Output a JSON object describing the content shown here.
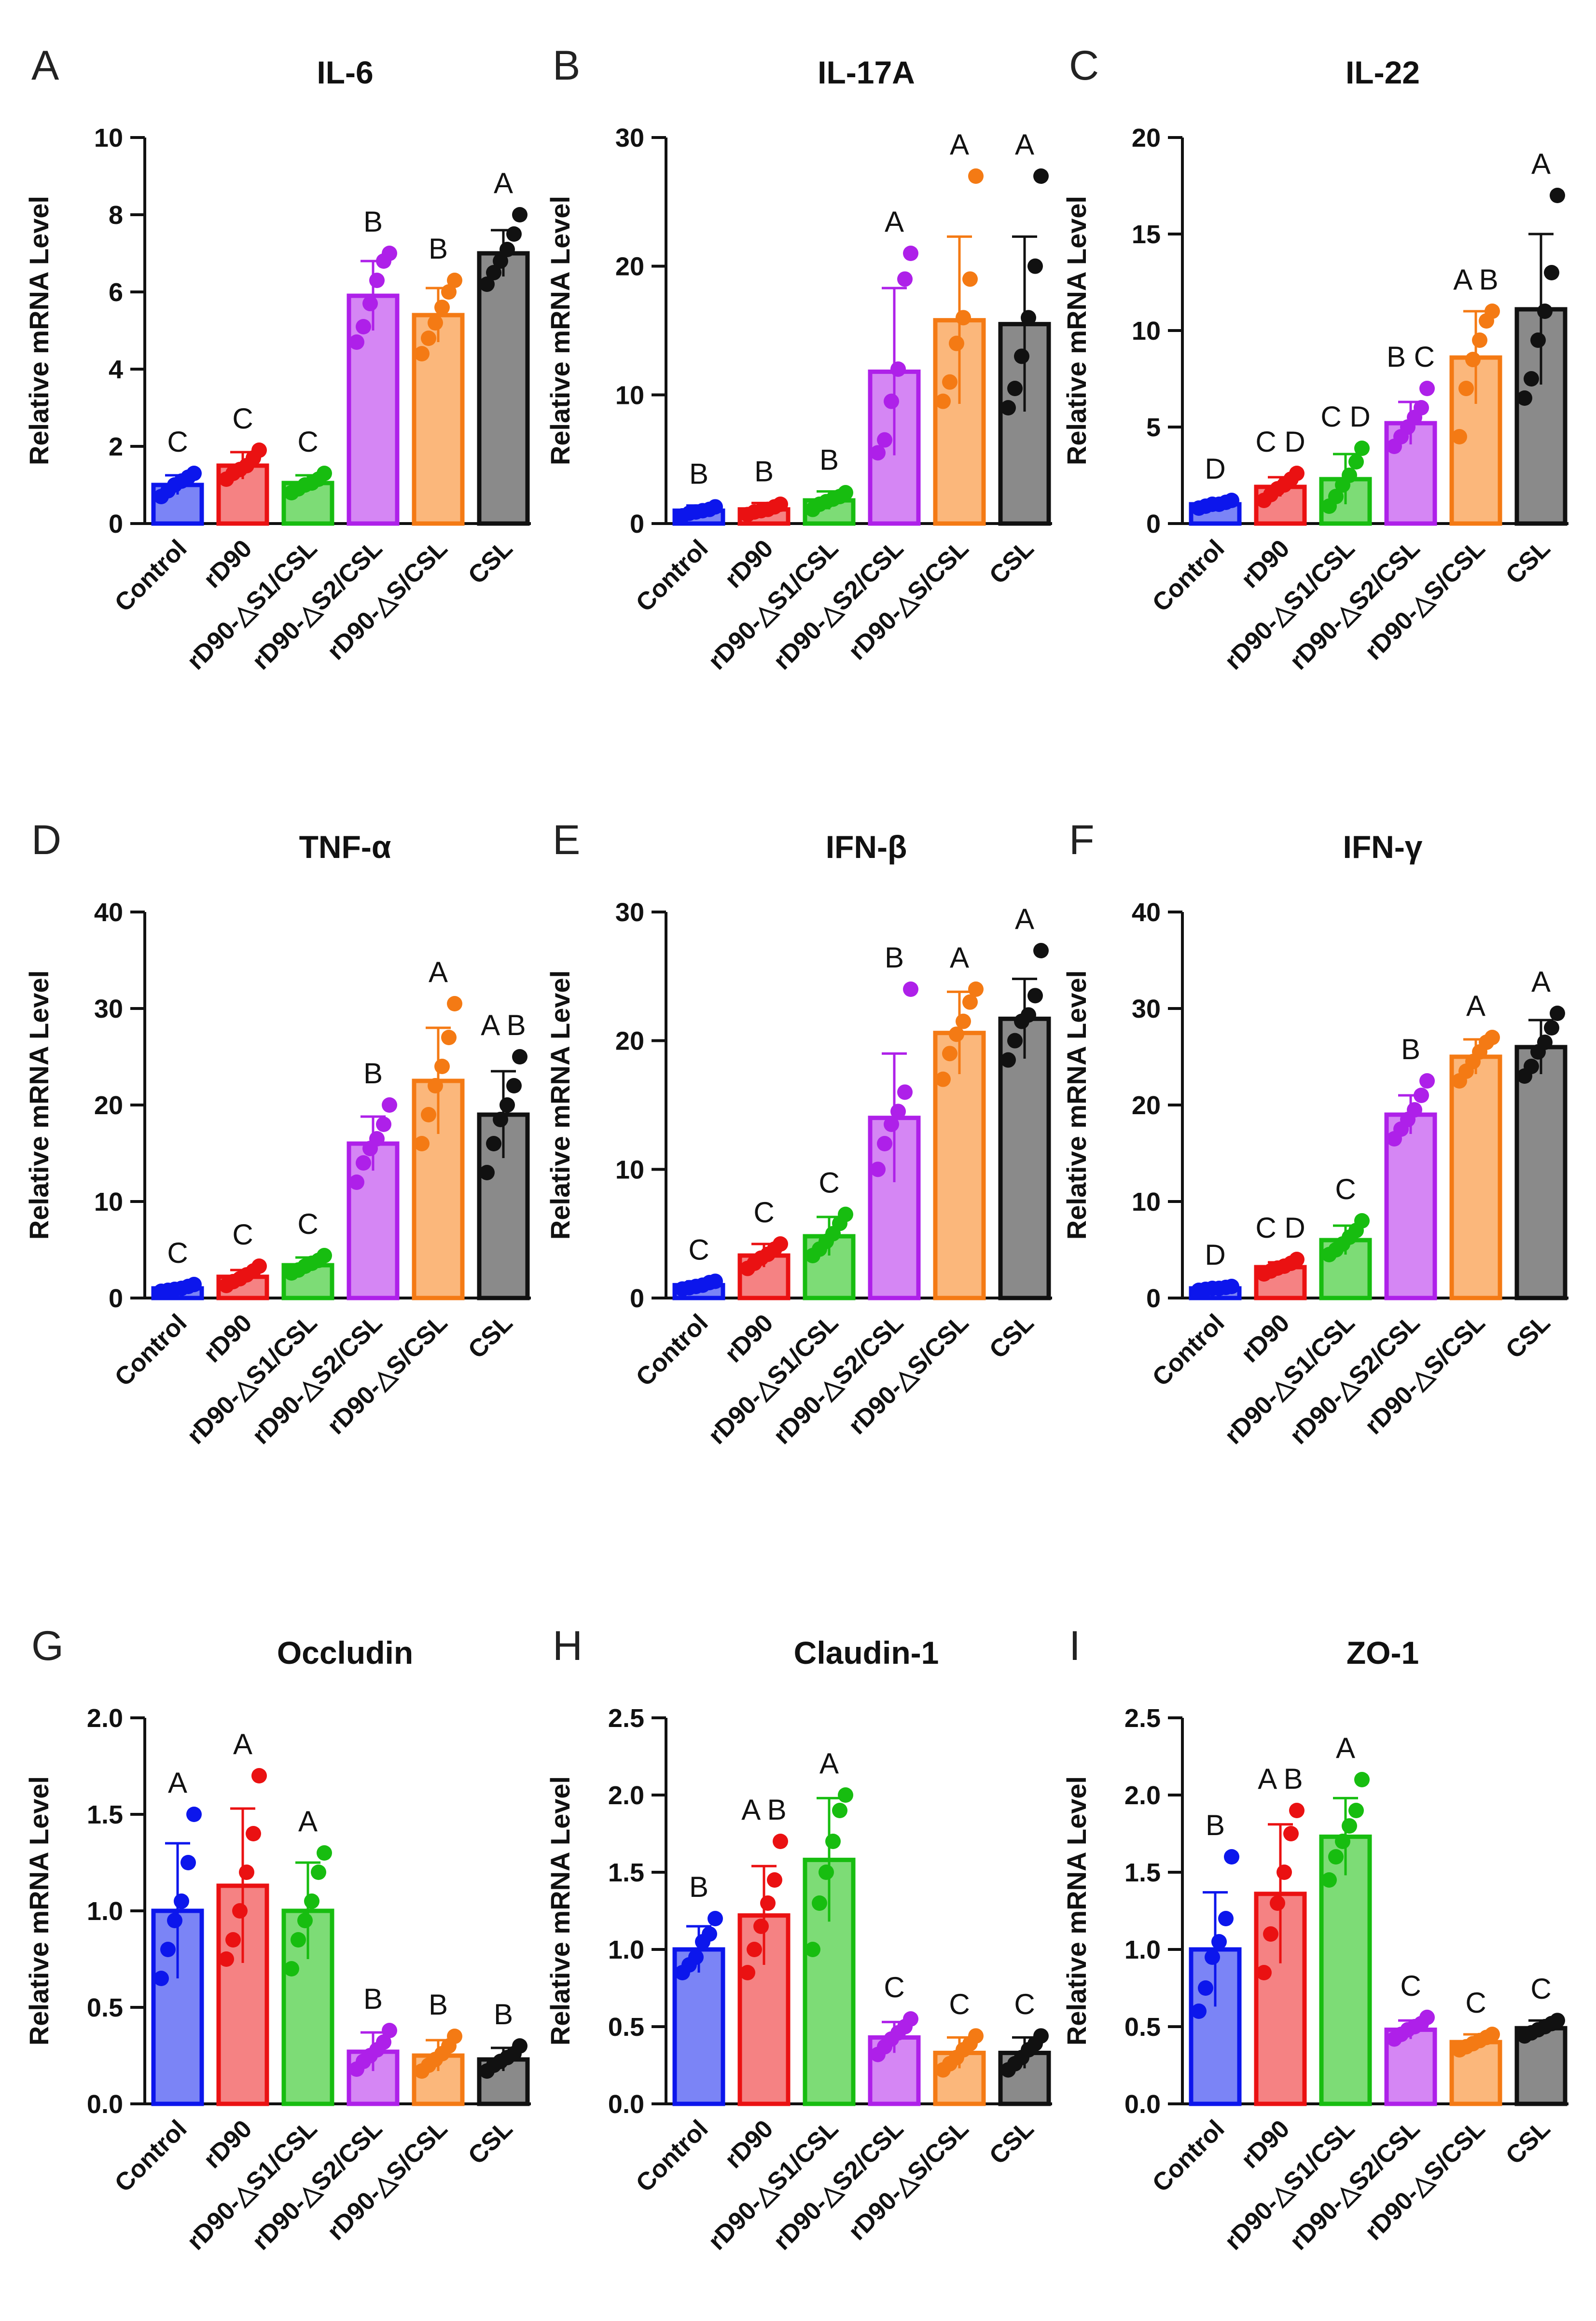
{
  "categories": [
    "Control",
    "rD90",
    "rD90-△S1/CSL",
    "rD90-△S2/CSL",
    "rD90-△S/CSL",
    "CSL"
  ],
  "colors": {
    "fill": [
      "#7b84f6",
      "#f58283",
      "#7ddc76",
      "#d586f4",
      "#fbb77b",
      "#8a8a8a"
    ],
    "stroke": [
      "#0c16ec",
      "#ea1112",
      "#17bd10",
      "#ae20e9",
      "#f47a14",
      "#111111"
    ]
  },
  "ylabel": "Relative mRNA Level",
  "chart_data": [
    {
      "type": "bar",
      "panel": "A",
      "title": "IL-6",
      "categories": [
        "Control",
        "rD90",
        "rD90-△S1/CSL",
        "rD90-△S2/CSL",
        "rD90-△S/CSL",
        "CSL"
      ],
      "ylim": [
        0,
        10
      ],
      "yticks": [
        0,
        2,
        4,
        6,
        8,
        10
      ],
      "tick_decimals": 0,
      "ylabel": "Relative mRNA Level",
      "values": [
        1.0,
        1.5,
        1.05,
        5.9,
        5.4,
        7.0
      ],
      "errors": [
        0.25,
        0.35,
        0.2,
        0.9,
        0.7,
        0.6
      ],
      "points": [
        [
          0.7,
          0.85,
          1.0,
          1.1,
          1.2,
          1.3
        ],
        [
          1.15,
          1.3,
          1.4,
          1.5,
          1.7,
          1.9
        ],
        [
          0.8,
          0.9,
          1.0,
          1.05,
          1.15,
          1.3
        ],
        [
          4.7,
          5.1,
          5.7,
          6.3,
          6.8,
          7.0
        ],
        [
          4.4,
          4.8,
          5.2,
          5.6,
          6.0,
          6.3
        ],
        [
          6.2,
          6.5,
          6.8,
          7.1,
          7.5,
          8.0
        ]
      ],
      "letters": [
        "C",
        "C",
        "C",
        "B",
        "B",
        "A"
      ]
    },
    {
      "type": "bar",
      "panel": "B",
      "title": "IL-17A",
      "categories": [
        "Control",
        "rD90",
        "rD90-△S1/CSL",
        "rD90-△S2/CSL",
        "rD90-△S/CSL",
        "CSL"
      ],
      "ylim": [
        0,
        30
      ],
      "yticks": [
        0,
        10,
        20,
        30
      ],
      "tick_decimals": 0,
      "ylabel": "Relative mRNA Level",
      "values": [
        1.0,
        1.1,
        1.8,
        11.8,
        15.8,
        15.5
      ],
      "errors": [
        0.4,
        0.5,
        0.7,
        6.5,
        6.5,
        6.8
      ],
      "points": [
        [
          0.6,
          0.8,
          0.9,
          1.0,
          1.1,
          1.3
        ],
        [
          0.7,
          0.9,
          1.0,
          1.1,
          1.3,
          1.5
        ],
        [
          1.1,
          1.5,
          1.7,
          1.9,
          2.1,
          2.4
        ],
        [
          5.5,
          6.5,
          9.5,
          12.0,
          19.0,
          21.0
        ],
        [
          9.5,
          11.0,
          14.0,
          16.0,
          19.0,
          27.0
        ],
        [
          9.0,
          10.5,
          13.0,
          16.0,
          20.0,
          27.0
        ]
      ],
      "letters": [
        "B",
        "B",
        "B",
        "A",
        "A",
        "A"
      ]
    },
    {
      "type": "bar",
      "panel": "C",
      "title": "IL-22",
      "categories": [
        "Control",
        "rD90",
        "rD90-△S1/CSL",
        "rD90-△S2/CSL",
        "rD90-△S/CSL",
        "CSL"
      ],
      "ylim": [
        0,
        20
      ],
      "yticks": [
        0,
        5,
        10,
        15,
        20
      ],
      "tick_decimals": 0,
      "ylabel": "Relative mRNA Level",
      "values": [
        1.0,
        1.9,
        2.3,
        5.2,
        8.6,
        11.1
      ],
      "errors": [
        0.2,
        0.5,
        1.3,
        1.1,
        2.4,
        3.9
      ],
      "points": [
        [
          0.8,
          0.9,
          1.0,
          1.0,
          1.1,
          1.2
        ],
        [
          1.2,
          1.5,
          1.8,
          2.0,
          2.3,
          2.6
        ],
        [
          0.9,
          1.4,
          2.0,
          2.5,
          3.2,
          3.9
        ],
        [
          4.0,
          4.5,
          5.0,
          5.5,
          6.0,
          7.0
        ],
        [
          4.5,
          7.0,
          8.5,
          9.5,
          10.5,
          11.0
        ],
        [
          6.5,
          7.5,
          9.5,
          11.0,
          13.0,
          17.0
        ]
      ],
      "letters": [
        "D",
        "C D",
        "C D",
        "B C",
        "A B",
        "A"
      ]
    },
    {
      "type": "bar",
      "panel": "D",
      "title": "TNF-α",
      "categories": [
        "Control",
        "rD90",
        "rD90-△S1/CSL",
        "rD90-△S2/CSL",
        "rD90-△S/CSL",
        "CSL"
      ],
      "ylim": [
        0,
        40
      ],
      "yticks": [
        0,
        10,
        20,
        30,
        40
      ],
      "tick_decimals": 0,
      "ylabel": "Relative mRNA Level",
      "values": [
        1.0,
        2.2,
        3.4,
        16.0,
        22.5,
        19.0
      ],
      "errors": [
        0.3,
        0.7,
        0.8,
        2.8,
        5.5,
        4.5
      ],
      "points": [
        [
          0.7,
          0.8,
          0.9,
          1.0,
          1.2,
          1.4
        ],
        [
          1.3,
          1.7,
          2.0,
          2.4,
          2.8,
          3.3
        ],
        [
          2.6,
          2.9,
          3.3,
          3.6,
          3.9,
          4.4
        ],
        [
          12.0,
          14.0,
          15.5,
          16.5,
          18.0,
          20.0
        ],
        [
          16.0,
          19.0,
          22.0,
          24.0,
          27.0,
          30.5
        ],
        [
          13.0,
          16.0,
          18.5,
          20.0,
          22.0,
          25.0
        ]
      ],
      "letters": [
        "C",
        "C",
        "C",
        "B",
        "A",
        "A B"
      ]
    },
    {
      "type": "bar",
      "panel": "E",
      "title": "IFN-β",
      "categories": [
        "Control",
        "rD90",
        "rD90-△S1/CSL",
        "rD90-△S2/CSL",
        "rD90-△S/CSL",
        "CSL"
      ],
      "ylim": [
        0,
        30
      ],
      "yticks": [
        0,
        10,
        20,
        30
      ],
      "tick_decimals": 0,
      "ylabel": "Relative mRNA Level",
      "values": [
        1.0,
        3.3,
        4.8,
        14.0,
        20.6,
        21.7
      ],
      "errors": [
        0.3,
        0.9,
        1.5,
        5.0,
        3.2,
        3.1
      ],
      "points": [
        [
          0.7,
          0.8,
          0.9,
          1.0,
          1.2,
          1.3
        ],
        [
          2.3,
          2.7,
          3.1,
          3.4,
          3.8,
          4.2
        ],
        [
          3.3,
          3.8,
          4.4,
          5.0,
          5.8,
          6.5
        ],
        [
          10.0,
          12.0,
          13.5,
          14.5,
          16.0,
          24.0
        ],
        [
          17.0,
          19.0,
          20.5,
          21.5,
          23.0,
          24.0
        ],
        [
          18.5,
          20.0,
          21.5,
          22.0,
          23.5,
          27.0
        ]
      ],
      "letters": [
        "C",
        "C",
        "C",
        "B",
        "A",
        "A"
      ]
    },
    {
      "type": "bar",
      "panel": "F",
      "title": "IFN-γ",
      "categories": [
        "Control",
        "rD90",
        "rD90-△S1/CSL",
        "rD90-△S2/CSL",
        "rD90-△S/CSL",
        "CSL"
      ],
      "ylim": [
        0,
        40
      ],
      "yticks": [
        0,
        10,
        20,
        30,
        40
      ],
      "tick_decimals": 0,
      "ylabel": "Relative mRNA Level",
      "values": [
        1.0,
        3.2,
        6.0,
        19.0,
        25.0,
        26.0
      ],
      "errors": [
        0.2,
        0.5,
        1.5,
        2.0,
        1.8,
        2.8
      ],
      "points": [
        [
          0.8,
          0.9,
          1.0,
          1.0,
          1.1,
          1.2
        ],
        [
          2.5,
          2.8,
          3.1,
          3.3,
          3.6,
          4.0
        ],
        [
          4.5,
          5.0,
          5.6,
          6.3,
          7.0,
          8.0
        ],
        [
          16.5,
          17.5,
          18.5,
          19.5,
          21.0,
          22.5
        ],
        [
          22.5,
          23.5,
          24.5,
          25.5,
          26.5,
          27.0
        ],
        [
          23.0,
          24.0,
          25.5,
          26.5,
          28.0,
          29.5
        ]
      ],
      "letters": [
        "D",
        "C D",
        "C",
        "B",
        "A",
        "A"
      ]
    },
    {
      "type": "bar",
      "panel": "G",
      "title": "Occludin",
      "categories": [
        "Control",
        "rD90",
        "rD90-△S1/CSL",
        "rD90-△S2/CSL",
        "rD90-△S/CSL",
        "CSL"
      ],
      "ylim": [
        0,
        2.0
      ],
      "yticks": [
        0,
        0.5,
        1.0,
        1.5,
        2.0
      ],
      "tick_decimals": 1,
      "ylabel": "Relative mRNA Level",
      "values": [
        1.0,
        1.13,
        1.0,
        0.27,
        0.25,
        0.23
      ],
      "errors": [
        0.35,
        0.4,
        0.25,
        0.1,
        0.08,
        0.06
      ],
      "points": [
        [
          0.65,
          0.8,
          0.95,
          1.05,
          1.25,
          1.5
        ],
        [
          0.75,
          0.85,
          1.0,
          1.2,
          1.4,
          1.7
        ],
        [
          0.7,
          0.85,
          0.95,
          1.05,
          1.2,
          1.3
        ],
        [
          0.18,
          0.22,
          0.25,
          0.28,
          0.32,
          0.38
        ],
        [
          0.17,
          0.2,
          0.23,
          0.26,
          0.3,
          0.35
        ],
        [
          0.17,
          0.2,
          0.22,
          0.24,
          0.26,
          0.3
        ]
      ],
      "letters": [
        "A",
        "A",
        "A",
        "B",
        "B",
        "B"
      ]
    },
    {
      "type": "bar",
      "panel": "H",
      "title": "Claudin-1",
      "categories": [
        "Control",
        "rD90",
        "rD90-△S1/CSL",
        "rD90-△S2/CSL",
        "rD90-△S/CSL",
        "CSL"
      ],
      "ylim": [
        0,
        2.5
      ],
      "yticks": [
        0,
        0.5,
        1.0,
        1.5,
        2.0,
        2.5
      ],
      "tick_decimals": 1,
      "ylabel": "Relative mRNA Level",
      "values": [
        1.0,
        1.22,
        1.58,
        0.43,
        0.33,
        0.33
      ],
      "errors": [
        0.15,
        0.32,
        0.4,
        0.1,
        0.1,
        0.1
      ],
      "points": [
        [
          0.85,
          0.9,
          0.95,
          1.05,
          1.1,
          1.2
        ],
        [
          0.85,
          1.0,
          1.15,
          1.3,
          1.45,
          1.7
        ],
        [
          1.0,
          1.3,
          1.5,
          1.7,
          1.9,
          2.0
        ],
        [
          0.32,
          0.37,
          0.42,
          0.46,
          0.5,
          0.55
        ],
        [
          0.22,
          0.26,
          0.3,
          0.35,
          0.39,
          0.44
        ],
        [
          0.22,
          0.26,
          0.3,
          0.35,
          0.39,
          0.44
        ]
      ],
      "letters": [
        "B",
        "A B",
        "A",
        "C",
        "C",
        "C"
      ]
    },
    {
      "type": "bar",
      "panel": "I",
      "title": "ZO-1",
      "categories": [
        "Control",
        "rD90",
        "rD90-△S1/CSL",
        "rD90-△S2/CSL",
        "rD90-△S/CSL",
        "CSL"
      ],
      "ylim": [
        0,
        2.5
      ],
      "yticks": [
        0,
        0.5,
        1.0,
        1.5,
        2.0,
        2.5
      ],
      "tick_decimals": 1,
      "ylabel": "Relative mRNA Level",
      "values": [
        1.0,
        1.36,
        1.73,
        0.48,
        0.4,
        0.49
      ],
      "errors": [
        0.37,
        0.45,
        0.25,
        0.06,
        0.05,
        0.05
      ],
      "points": [
        [
          0.6,
          0.75,
          0.95,
          1.05,
          1.2,
          1.6
        ],
        [
          0.85,
          1.1,
          1.3,
          1.5,
          1.75,
          1.9
        ],
        [
          1.45,
          1.6,
          1.7,
          1.8,
          1.9,
          2.1
        ],
        [
          0.42,
          0.45,
          0.48,
          0.5,
          0.52,
          0.56
        ],
        [
          0.35,
          0.37,
          0.39,
          0.41,
          0.43,
          0.45
        ],
        [
          0.44,
          0.46,
          0.48,
          0.5,
          0.52,
          0.54
        ]
      ],
      "letters": [
        "B",
        "A B",
        "A",
        "C",
        "C",
        "C"
      ]
    }
  ]
}
